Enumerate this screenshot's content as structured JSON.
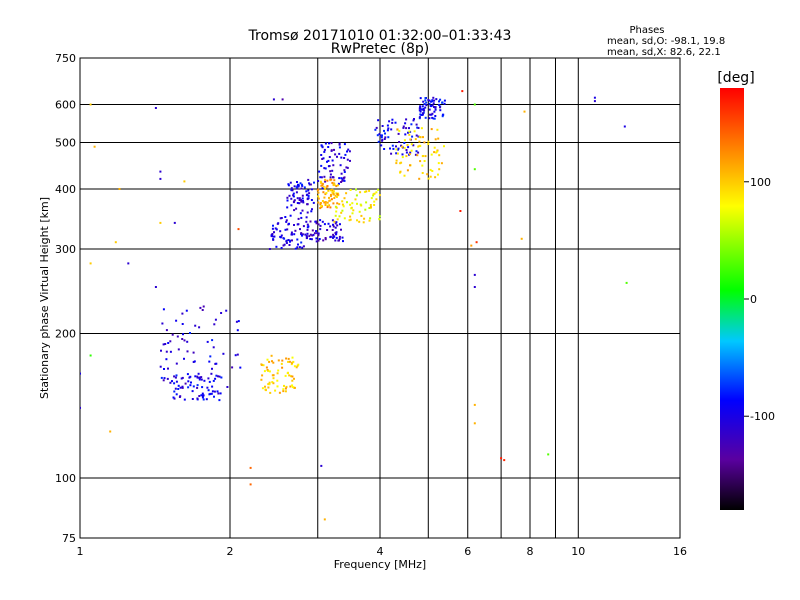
{
  "chart_data": {
    "type": "scatter",
    "title": "Tromsø 20171010 01:32:00–01:33:43",
    "subtitle": "RwPretec (8p)",
    "xlabel": "Frequency [MHz]",
    "ylabel": "Stationary phase Virtual Height [km]",
    "x_scale": "log",
    "y_scale": "log",
    "xlim": [
      1,
      16
    ],
    "ylim": [
      75,
      750
    ],
    "x_ticks": [
      "1",
      "2",
      "4",
      "6",
      "8",
      "10",
      "16"
    ],
    "x_tick_values": [
      1,
      2,
      4,
      6,
      8,
      10,
      16
    ],
    "y_ticks": [
      "75",
      "100",
      "200",
      "300",
      "400",
      "500",
      "600",
      "750"
    ],
    "y_tick_values": [
      75,
      100,
      200,
      300,
      400,
      500,
      600,
      750
    ],
    "x_minor_values": [
      3,
      5,
      7,
      9
    ],
    "grid": true,
    "annotation": {
      "heading": "Phases",
      "line1": "mean, sd,O: -98.1, 19.8",
      "line2": "mean, sd,X:  82.6, 22.1"
    },
    "colorbar": {
      "label": "[deg]",
      "range": [
        -180,
        180
      ],
      "ticks": [
        "100",
        "0",
        "-100"
      ],
      "tick_values": [
        100,
        0,
        -100
      ]
    },
    "clusters": [
      {
        "name": "o-trace-lower",
        "fmin": 1.5,
        "fmax": 1.95,
        "hmin": 145,
        "hmax": 165,
        "phase": -100
      },
      {
        "name": "o-trace-body",
        "fmin": 1.45,
        "fmax": 2.1,
        "hmin": 150,
        "hmax": 230,
        "phase": -100
      },
      {
        "name": "o-f1-a",
        "fmin": 2.4,
        "fmax": 2.85,
        "hmin": 300,
        "hmax": 350,
        "phase": -100
      },
      {
        "name": "o-f1-b",
        "fmin": 2.85,
        "fmax": 3.4,
        "hmin": 310,
        "hmax": 345,
        "phase": -110
      },
      {
        "name": "o-f2-a",
        "fmin": 3.0,
        "fmax": 3.5,
        "hmin": 400,
        "hmax": 500,
        "phase": -105
      },
      {
        "name": "o-f2-b",
        "fmin": 3.9,
        "fmax": 4.8,
        "hmin": 470,
        "hmax": 560,
        "phase": -100
      },
      {
        "name": "o-f2-top",
        "fmin": 4.8,
        "fmax": 5.4,
        "hmin": 560,
        "hmax": 620,
        "phase": -95
      },
      {
        "name": "o-mid",
        "fmin": 2.6,
        "fmax": 2.95,
        "hmin": 350,
        "hmax": 420,
        "phase": -100
      },
      {
        "name": "x-lower",
        "fmin": 2.3,
        "fmax": 2.75,
        "hmin": 150,
        "hmax": 180,
        "phase": 100
      },
      {
        "name": "x-mid",
        "fmin": 3.2,
        "fmax": 4.0,
        "hmin": 340,
        "hmax": 400,
        "phase": 80
      },
      {
        "name": "x-upper",
        "fmin": 4.3,
        "fmax": 5.4,
        "hmin": 420,
        "hmax": 540,
        "phase": 95
      },
      {
        "name": "x-f1",
        "fmin": 3.0,
        "fmax": 3.3,
        "hmin": 360,
        "hmax": 420,
        "phase": 110
      }
    ],
    "points": [
      {
        "x": 1.0,
        "y": 140,
        "phase": -110
      },
      {
        "x": 1.0,
        "y": 165,
        "phase": -100
      },
      {
        "x": 1.05,
        "y": 180,
        "phase": 20
      },
      {
        "x": 1.05,
        "y": 280,
        "phase": 100
      },
      {
        "x": 1.07,
        "y": 490,
        "phase": 110
      },
      {
        "x": 1.05,
        "y": 600,
        "phase": 100
      },
      {
        "x": 1.15,
        "y": 125,
        "phase": 110
      },
      {
        "x": 1.18,
        "y": 310,
        "phase": 100
      },
      {
        "x": 1.2,
        "y": 400,
        "phase": 110
      },
      {
        "x": 1.25,
        "y": 280,
        "phase": -110
      },
      {
        "x": 1.42,
        "y": 590,
        "phase": -110
      },
      {
        "x": 1.45,
        "y": 435,
        "phase": -110
      },
      {
        "x": 1.45,
        "y": 420,
        "phase": -110
      },
      {
        "x": 1.62,
        "y": 415,
        "phase": 100
      },
      {
        "x": 1.42,
        "y": 250,
        "phase": -110
      },
      {
        "x": 2.08,
        "y": 330,
        "phase": 150
      },
      {
        "x": 2.2,
        "y": 105,
        "phase": 140
      },
      {
        "x": 2.2,
        "y": 97,
        "phase": 140
      },
      {
        "x": 3.05,
        "y": 106,
        "phase": -110
      },
      {
        "x": 3.1,
        "y": 82,
        "phase": 110
      },
      {
        "x": 2.55,
        "y": 615,
        "phase": -130
      },
      {
        "x": 2.45,
        "y": 615,
        "phase": -110
      },
      {
        "x": 6.2,
        "y": 600,
        "phase": 30
      },
      {
        "x": 6.2,
        "y": 440,
        "phase": 30
      },
      {
        "x": 6.1,
        "y": 305,
        "phase": 120
      },
      {
        "x": 6.25,
        "y": 310,
        "phase": 160
      },
      {
        "x": 6.2,
        "y": 265,
        "phase": -110
      },
      {
        "x": 6.2,
        "y": 250,
        "phase": -110
      },
      {
        "x": 6.2,
        "y": 142,
        "phase": 110
      },
      {
        "x": 6.2,
        "y": 130,
        "phase": 110
      },
      {
        "x": 7.0,
        "y": 110,
        "phase": 170
      },
      {
        "x": 7.1,
        "y": 109,
        "phase": 165
      },
      {
        "x": 8.7,
        "y": 112,
        "phase": 30
      },
      {
        "x": 5.8,
        "y": 360,
        "phase": 170
      },
      {
        "x": 5.85,
        "y": 640,
        "phase": 170
      },
      {
        "x": 7.7,
        "y": 315,
        "phase": 110
      },
      {
        "x": 7.8,
        "y": 580,
        "phase": 110
      },
      {
        "x": 10.8,
        "y": 620,
        "phase": -100
      },
      {
        "x": 10.8,
        "y": 610,
        "phase": -110
      },
      {
        "x": 12.4,
        "y": 540,
        "phase": -100
      },
      {
        "x": 12.5,
        "y": 255,
        "phase": 30
      },
      {
        "x": 1.45,
        "y": 340,
        "phase": 100
      },
      {
        "x": 1.55,
        "y": 340,
        "phase": -110
      }
    ]
  }
}
